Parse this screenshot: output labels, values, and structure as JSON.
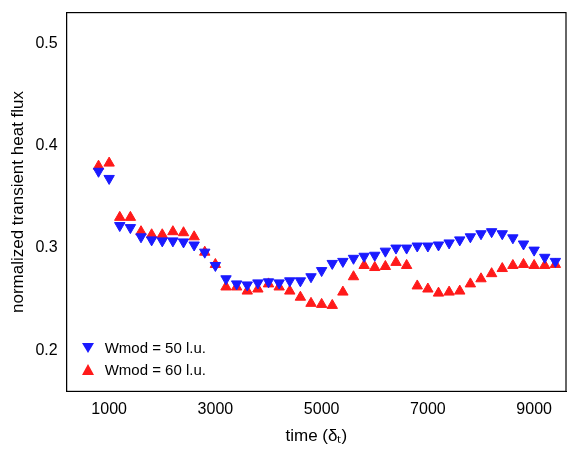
{
  "chart_data": {
    "type": "scatter",
    "x_label": "time (δₜ)",
    "y_label": "normalized transient heat flux",
    "x": [
      800,
      1000,
      1200,
      1400,
      1600,
      1800,
      2000,
      2200,
      2400,
      2600,
      2800,
      3000,
      3200,
      3400,
      3600,
      3800,
      4000,
      4200,
      4400,
      4600,
      4800,
      5000,
      5200,
      5400,
      5600,
      5800,
      6000,
      6200,
      6400,
      6600,
      6800,
      7000,
      7200,
      7400,
      7600,
      7800,
      8000,
      8200,
      8400,
      8600,
      8800,
      9000,
      9200,
      9400
    ],
    "series": [
      {
        "name": "Wmod = 50 l.u.",
        "color": "#1a1aff",
        "marker": "triangle-down",
        "values": [
          0.375,
          0.368,
          0.322,
          0.32,
          0.311,
          0.308,
          0.307,
          0.307,
          0.306,
          0.303,
          0.296,
          0.283,
          0.27,
          0.265,
          0.264,
          0.266,
          0.267,
          0.266,
          0.268,
          0.268,
          0.272,
          0.278,
          0.285,
          0.287,
          0.29,
          0.292,
          0.293,
          0.297,
          0.3,
          0.3,
          0.302,
          0.302,
          0.303,
          0.305,
          0.308,
          0.311,
          0.314,
          0.316,
          0.314,
          0.31,
          0.304,
          0.298,
          0.291,
          0.287
        ]
      },
      {
        "name": "Wmod = 60 l.u.",
        "color": "#ff1a1a",
        "marker": "triangle-up",
        "values": [
          0.38,
          0.383,
          0.33,
          0.33,
          0.316,
          0.313,
          0.313,
          0.316,
          0.315,
          0.311,
          0.296,
          0.284,
          0.262,
          0.262,
          0.258,
          0.26,
          0.265,
          0.262,
          0.258,
          0.252,
          0.246,
          0.245,
          0.244,
          0.257,
          0.272,
          0.283,
          0.281,
          0.282,
          0.286,
          0.283,
          0.263,
          0.26,
          0.256,
          0.257,
          0.258,
          0.265,
          0.27,
          0.275,
          0.28,
          0.283,
          0.284,
          0.283,
          0.283,
          0.284
        ]
      }
    ],
    "xlim": [
      200,
      9600
    ],
    "xticks": [
      1000,
      3000,
      5000,
      7000,
      9000
    ],
    "ylim": [
      0.16,
      0.53
    ],
    "yticks": [
      0.2,
      0.3,
      0.4,
      0.5
    ],
    "grid": false,
    "legend": "lower left"
  }
}
